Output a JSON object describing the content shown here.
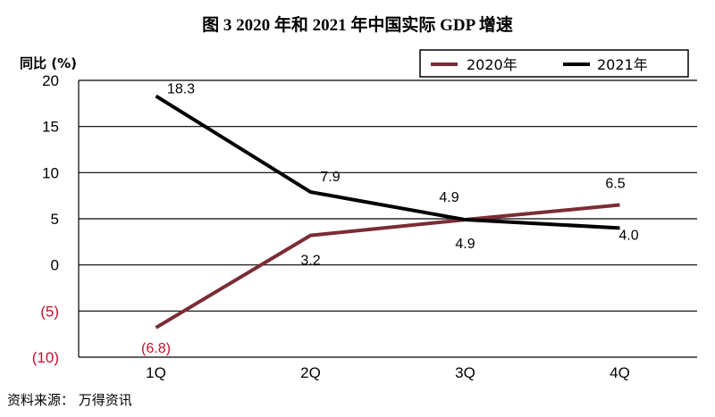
{
  "chart_data": {
    "type": "line",
    "title": "图 3   2020 年和 2021 年中国实际 GDP 增速",
    "ylabel": "同比 (%)",
    "xlabel": "",
    "categories": [
      "1Q",
      "2Q",
      "3Q",
      "4Q"
    ],
    "ylim": [
      -10,
      20
    ],
    "yticks": [
      20,
      15,
      10,
      5,
      0,
      -5,
      -10
    ],
    "ytick_labels": [
      "20",
      "15",
      "10",
      "5",
      "0",
      "(5)",
      "(10)"
    ],
    "grid": true,
    "legend_position": "top-right",
    "series": [
      {
        "name": "2020年",
        "color": "#7b2c35",
        "values": [
          -6.8,
          3.2,
          4.9,
          6.5
        ],
        "labels": [
          "(6.8)",
          "3.2",
          "4.9",
          "6.5"
        ],
        "label_colors": [
          "#c8102e",
          "#000000",
          "#000000",
          "#000000"
        ]
      },
      {
        "name": "2021年",
        "color": "#000000",
        "values": [
          18.3,
          7.9,
          4.9,
          4.0
        ],
        "labels": [
          "18.3",
          "7.9",
          "4.9",
          "4.0"
        ],
        "label_colors": [
          "#000000",
          "#000000",
          "#000000",
          "#000000"
        ]
      }
    ],
    "source": "资料来源： 万得资讯"
  }
}
